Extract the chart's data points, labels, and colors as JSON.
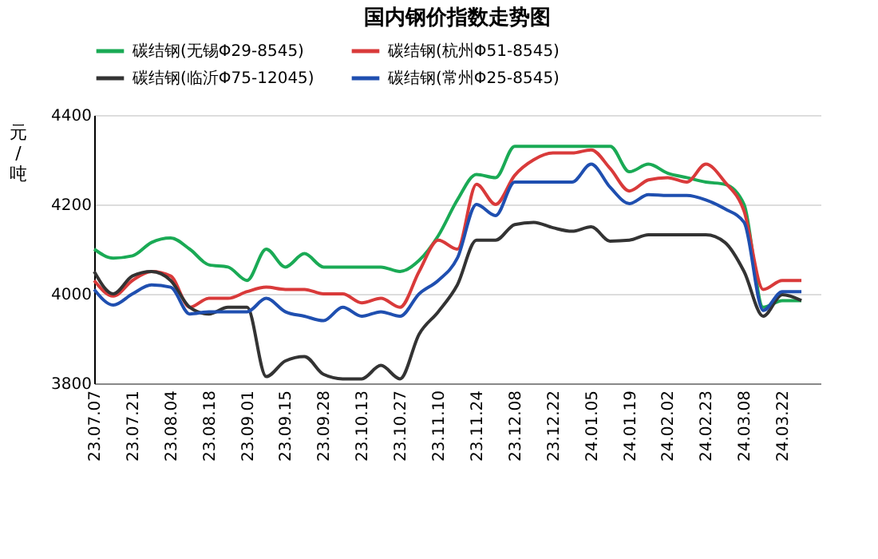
{
  "chart_data": {
    "type": "line",
    "title": "国内钢价指数走势图",
    "ylabel": "元/吨",
    "categories": [
      "23.07.07",
      null,
      "23.07.21",
      null,
      "23.08.04",
      null,
      "23.08.18",
      null,
      "23.09.01",
      null,
      "23.09.15",
      null,
      "23.09.28",
      null,
      "23.10.13",
      null,
      "23.10.27",
      null,
      "23.11.10",
      null,
      "23.11.24",
      null,
      "23.12.08",
      null,
      "23.12.22",
      null,
      "24.01.05",
      null,
      "24.01.19",
      null,
      "24.02.02",
      null,
      "24.02.23",
      null,
      "24.03.08",
      null,
      "24.03.22",
      null
    ],
    "series": [
      {
        "name": "碳结钢(无锡Φ29-8545)",
        "color": "#1aaa55",
        "values": [
          4100,
          4080,
          4085,
          4115,
          4125,
          4100,
          4065,
          4060,
          4030,
          4100,
          4060,
          4090,
          4060,
          4060,
          4060,
          4060,
          4050,
          4075,
          4130,
          4210,
          4267,
          4260,
          4330,
          4330,
          4330,
          4330,
          4330,
          4330,
          4273,
          4290,
          4270,
          4260,
          4250,
          4245,
          4200,
          3970,
          3985,
          3985
        ]
      },
      {
        "name": "碳结钢(杭州Φ51-8545)",
        "color": "#d93a3a",
        "values": [
          4030,
          3995,
          4030,
          4050,
          4040,
          3970,
          3990,
          3990,
          4005,
          4015,
          4010,
          4010,
          4000,
          4000,
          3980,
          3990,
          3970,
          4050,
          4120,
          4100,
          4245,
          4200,
          4265,
          4300,
          4315,
          4315,
          4322,
          4280,
          4230,
          4255,
          4260,
          4250,
          4290,
          4250,
          4185,
          4010,
          4030,
          4030
        ]
      },
      {
        "name": "碳结钢(临沂Φ75-12045)",
        "color": "#333333",
        "values": [
          4050,
          4000,
          4040,
          4050,
          4030,
          3970,
          3955,
          3970,
          3970,
          3815,
          3850,
          3860,
          3820,
          3810,
          3810,
          3840,
          3810,
          3910,
          3960,
          4020,
          4120,
          4120,
          4155,
          4160,
          4148,
          4140,
          4150,
          4118,
          4120,
          4132,
          4132,
          4132,
          4132,
          4115,
          4050,
          3950,
          3998,
          3985
        ]
      },
      {
        "name": "碳结钢(常州Φ25-8545)",
        "color": "#1f4fb0",
        "values": [
          4010,
          3975,
          4000,
          4020,
          4015,
          3955,
          3960,
          3960,
          3960,
          3990,
          3960,
          3950,
          3940,
          3970,
          3950,
          3960,
          3950,
          4000,
          4030,
          4080,
          4200,
          4175,
          4250,
          4250,
          4250,
          4250,
          4290,
          4238,
          4202,
          4222,
          4220,
          4220,
          4210,
          4190,
          4160,
          3963,
          4005,
          4005
        ]
      }
    ],
    "ylim": [
      3800,
      4400
    ],
    "yticks": [
      3800,
      4000,
      4200,
      4400
    ],
    "grid": "y",
    "legend": "top",
    "marker": "none",
    "line_style": "solid"
  }
}
